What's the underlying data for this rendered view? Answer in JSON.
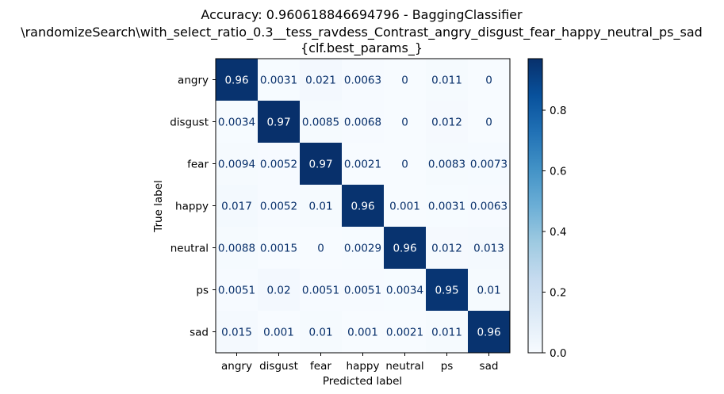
{
  "chart_data": {
    "type": "heatmap",
    "title_lines": [
      "Accuracy: 0.960618846694796 - BaggingClassifier",
      "\\randomizeSearch\\with_select_ratio_0.3__tess_ravdess_Contrast_angry_disgust_fear_happy_neutral_ps_sad",
      "{clf.best_params_}"
    ],
    "xlabel": "Predicted label",
    "ylabel": "True label",
    "x_categories": [
      "angry",
      "disgust",
      "fear",
      "happy",
      "neutral",
      "ps",
      "sad"
    ],
    "y_categories": [
      "angry",
      "disgust",
      "fear",
      "happy",
      "neutral",
      "ps",
      "sad"
    ],
    "values": [
      [
        0.96,
        0.0031,
        0.021,
        0.0063,
        0,
        0.011,
        0
      ],
      [
        0.0034,
        0.97,
        0.0085,
        0.0068,
        0,
        0.012,
        0
      ],
      [
        0.0094,
        0.0052,
        0.97,
        0.0021,
        0,
        0.0083,
        0.0073
      ],
      [
        0.017,
        0.0052,
        0.01,
        0.96,
        0.001,
        0.0031,
        0.0063
      ],
      [
        0.0088,
        0.0015,
        0,
        0.0029,
        0.96,
        0.012,
        0.013
      ],
      [
        0.0051,
        0.02,
        0.0051,
        0.0051,
        0.0034,
        0.95,
        0.01
      ],
      [
        0.015,
        0.001,
        0.01,
        0.001,
        0.0021,
        0.011,
        0.96
      ]
    ],
    "cell_labels": [
      [
        "0.96",
        "0.0031",
        "0.021",
        "0.0063",
        "0",
        "0.011",
        "0"
      ],
      [
        "0.0034",
        "0.97",
        "0.0085",
        "0.0068",
        "0",
        "0.012",
        "0"
      ],
      [
        "0.0094",
        "0.0052",
        "0.97",
        "0.0021",
        "0",
        "0.0083",
        "0.0073"
      ],
      [
        "0.017",
        "0.0052",
        "0.01",
        "0.96",
        "0.001",
        "0.0031",
        "0.0063"
      ],
      [
        "0.0088",
        "0.0015",
        "0",
        "0.0029",
        "0.96",
        "0.012",
        "0.013"
      ],
      [
        "0.0051",
        "0.02",
        "0.0051",
        "0.0051",
        "0.0034",
        "0.95",
        "0.01"
      ],
      [
        "0.015",
        "0.001",
        "0.01",
        "0.001",
        "0.0021",
        "0.011",
        "0.96"
      ]
    ],
    "colormap": "Blues",
    "colormap_stops": [
      "#f7fbff",
      "#deebf7",
      "#c6dbef",
      "#9ecae1",
      "#6baed6",
      "#4292c6",
      "#2171b5",
      "#08519c",
      "#08306b"
    ],
    "text_color_light": "#ffffff",
    "text_color_dark": "#08306b",
    "colorbar_range": [
      0,
      0.97
    ],
    "colorbar_ticks": [
      0.0,
      0.2,
      0.4,
      0.6,
      0.8
    ],
    "colorbar_tick_labels": [
      "0.0",
      "0.2",
      "0.4",
      "0.6",
      "0.8"
    ],
    "grid": false
  }
}
